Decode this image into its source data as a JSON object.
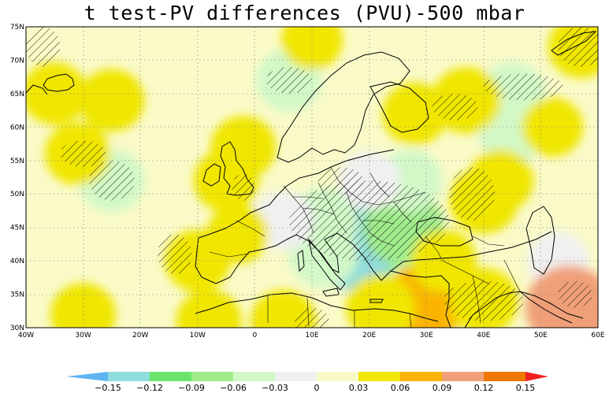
{
  "title": "t test-PV differences (PVU)-500 mbar",
  "map": {
    "lat_labels": [
      "75N",
      "70N",
      "65N",
      "60N",
      "55N",
      "50N",
      "45N",
      "40N",
      "35N",
      "30N"
    ],
    "lat_values": [
      75,
      70,
      65,
      60,
      55,
      50,
      45,
      40,
      35,
      30
    ],
    "lon_labels": [
      "40W",
      "30W",
      "20W",
      "10W",
      "0",
      "10E",
      "20E",
      "30E",
      "40E",
      "50E",
      "60E"
    ],
    "lon_values": [
      -40,
      -30,
      -20,
      -10,
      0,
      10,
      20,
      30,
      40,
      50,
      60
    ],
    "lon_range": [
      -40,
      60
    ],
    "lat_range": [
      30,
      75
    ]
  },
  "colorbar": {
    "labels": [
      "-0.15",
      "-0.12",
      "-0.09",
      "-0.06",
      "-0.03",
      "0",
      "0.03",
      "0.06",
      "0.09",
      "0.12",
      "0.15"
    ],
    "colors": [
      "#5fb4f0",
      "#8fdcdc",
      "#6ce46c",
      "#a0ec8c",
      "#d2f8c8",
      "#f0f0f0",
      "#fafac8",
      "#f0e600",
      "#fab400",
      "#f0a078",
      "#f07800",
      "#f02020"
    ]
  },
  "anomalies": [
    {
      "lon": 20,
      "lat": 46,
      "value": -0.06
    },
    {
      "lon": 19,
      "lat": 43,
      "value": -0.1
    },
    {
      "lon": 17,
      "lat": 42,
      "value": -0.13
    },
    {
      "lon": 26,
      "lat": 45,
      "value": -0.08
    },
    {
      "lon": 12,
      "lat": 46,
      "value": -0.05
    },
    {
      "lon": 12,
      "lat": 41,
      "value": -0.05
    },
    {
      "lon": 27,
      "lat": 52,
      "value": -0.04
    },
    {
      "lon": 20,
      "lat": 52,
      "value": -0.03
    },
    {
      "lon": -25,
      "lat": 52,
      "value": -0.04
    },
    {
      "lon": 5,
      "lat": 46,
      "value": -0.03
    },
    {
      "lon": 6,
      "lat": 67,
      "value": -0.04
    },
    {
      "lon": 45,
      "lat": 65,
      "value": -0.04
    },
    {
      "lon": 45,
      "lat": 59,
      "value": -0.04
    },
    {
      "lon": 53,
      "lat": 40,
      "value": -0.03
    },
    {
      "lon": 56,
      "lat": 32,
      "value": 0.15
    },
    {
      "lon": 55,
      "lat": 33,
      "value": 0.1
    },
    {
      "lon": 30,
      "lat": 34,
      "value": 0.08
    },
    {
      "lon": 22,
      "lat": 33,
      "value": 0.05
    },
    {
      "lon": 40,
      "lat": 34,
      "value": 0.05
    },
    {
      "lon": -30,
      "lat": 32,
      "value": 0.04
    },
    {
      "lon": -8,
      "lat": 31,
      "value": 0.04
    },
    {
      "lon": 5,
      "lat": 31,
      "value": 0.04
    },
    {
      "lon": 40,
      "lat": 49,
      "value": 0.05
    },
    {
      "lon": 43,
      "lat": 52,
      "value": 0.04
    },
    {
      "lon": 28,
      "lat": 62,
      "value": 0.04
    },
    {
      "lon": 37,
      "lat": 64,
      "value": 0.05
    },
    {
      "lon": -31,
      "lat": 56,
      "value": 0.04
    },
    {
      "lon": -25,
      "lat": 64,
      "value": 0.04
    },
    {
      "lon": -35,
      "lat": 65,
      "value": 0.04
    },
    {
      "lon": -5,
      "lat": 52,
      "value": 0.04
    },
    {
      "lon": 57,
      "lat": 72,
      "value": 0.04
    },
    {
      "lon": -2,
      "lat": 57,
      "value": 0.04
    },
    {
      "lon": -10,
      "lat": 40,
      "value": 0.04
    },
    {
      "lon": -3,
      "lat": 44,
      "value": 0.03
    },
    {
      "lon": 10,
      "lat": 73,
      "value": 0.03
    },
    {
      "lon": 52,
      "lat": 60,
      "value": 0.03
    },
    {
      "lon": 33,
      "lat": 40,
      "value": 0.04
    }
  ],
  "hatched_regions": [
    {
      "lon": 20,
      "lat": 46,
      "rx": 14,
      "ry": 6
    },
    {
      "lon": 40,
      "lat": 34,
      "rx": 7,
      "ry": 3
    },
    {
      "lon": -25,
      "lat": 52,
      "rx": 4,
      "ry": 3
    },
    {
      "lon": 6,
      "lat": 67,
      "rx": 4,
      "ry": 2
    },
    {
      "lon": 47,
      "lat": 66,
      "rx": 7,
      "ry": 2
    },
    {
      "lon": -37,
      "lat": 72,
      "rx": 3,
      "ry": 3
    },
    {
      "lon": 57,
      "lat": 72,
      "rx": 4,
      "ry": 3
    },
    {
      "lon": -30,
      "lat": 56,
      "rx": 4,
      "ry": 2
    },
    {
      "lon": -2,
      "lat": 51,
      "rx": 2,
      "ry": 2
    },
    {
      "lon": 35,
      "lat": 63,
      "rx": 4,
      "ry": 2
    },
    {
      "lon": 38,
      "lat": 50,
      "rx": 4,
      "ry": 4
    },
    {
      "lon": -14,
      "lat": 41,
      "rx": 3,
      "ry": 3
    },
    {
      "lon": 10,
      "lat": 31,
      "rx": 3,
      "ry": 2
    },
    {
      "lon": 56,
      "lat": 35,
      "rx": 3,
      "ry": 2
    },
    {
      "lon": 15,
      "lat": 52,
      "rx": 4,
      "ry": 2
    }
  ]
}
